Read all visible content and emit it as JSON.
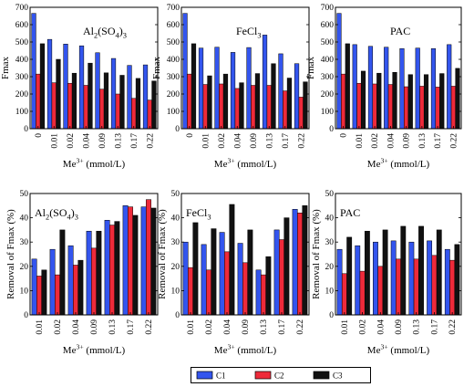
{
  "colors": {
    "C1": "#3355ee",
    "C2": "#ee2a3a",
    "C3": "#111111"
  },
  "legend": [
    "C1",
    "C2",
    "C3"
  ],
  "chart_data": [
    {
      "type": "bar",
      "panel": "top-left",
      "label": "Al2(SO4)3",
      "categories": [
        "0",
        "0.01",
        "0.02",
        "0.04",
        "0.09",
        "0.13",
        "0.17",
        "0.22"
      ],
      "xlabel": "Me3+ (mmol/L)",
      "ylabel": "Fmax",
      "ylim": [
        0,
        700
      ],
      "yticks": [
        0,
        100,
        200,
        300,
        400,
        500,
        600,
        700
      ],
      "series": [
        {
          "name": "C1",
          "values": [
            665,
            515,
            488,
            478,
            438,
            405,
            365,
            368
          ]
        },
        {
          "name": "C2",
          "values": [
            315,
            265,
            262,
            250,
            228,
            200,
            175,
            165
          ]
        },
        {
          "name": "C3",
          "values": [
            490,
            400,
            320,
            378,
            322,
            308,
            290,
            275
          ]
        }
      ]
    },
    {
      "type": "bar",
      "panel": "top-middle",
      "label": "FeCl3",
      "categories": [
        "0",
        "0.01",
        "0.02",
        "0.04",
        "0.09",
        "0.13",
        "0.17",
        "0.22"
      ],
      "xlabel": "Me3+ (mmol/L)",
      "ylabel": "Fmax",
      "ylim": [
        0,
        700
      ],
      "yticks": [
        0,
        100,
        200,
        300,
        400,
        500,
        600,
        700
      ],
      "series": [
        {
          "name": "C1",
          "values": [
            665,
            465,
            470,
            440,
            468,
            540,
            432,
            375
          ]
        },
        {
          "name": "C2",
          "values": [
            315,
            255,
            258,
            232,
            250,
            250,
            218,
            182
          ]
        },
        {
          "name": "C3",
          "values": [
            490,
            305,
            315,
            265,
            318,
            375,
            292,
            270
          ]
        }
      ]
    },
    {
      "type": "bar",
      "panel": "top-right",
      "label": "PAC",
      "categories": [
        "0",
        "0.01",
        "0.02",
        "0.04",
        "0.09",
        "0.13",
        "0.17",
        "0.22"
      ],
      "xlabel": "Me3+ (mmol/L)",
      "ylabel": "Fmax",
      "ylim": [
        0,
        700
      ],
      "yticks": [
        0,
        100,
        200,
        300,
        400,
        500,
        600,
        700
      ],
      "series": [
        {
          "name": "C1",
          "values": [
            665,
            485,
            475,
            470,
            462,
            465,
            462,
            485
          ]
        },
        {
          "name": "C2",
          "values": [
            315,
            262,
            258,
            255,
            242,
            245,
            240,
            245
          ]
        },
        {
          "name": "C3",
          "values": [
            490,
            332,
            320,
            325,
            312,
            312,
            318,
            348
          ]
        }
      ]
    },
    {
      "type": "bar",
      "panel": "bottom-left",
      "label": "Al2(SO4)3",
      "categories": [
        "0.01",
        "0.02",
        "0.04",
        "0.09",
        "0.13",
        "0.17",
        "0.22"
      ],
      "xlabel": "Me3+ (mmol/L)",
      "ylabel": "Removal of Fmax (%)",
      "ylim": [
        0,
        50
      ],
      "yticks": [
        0,
        10,
        20,
        30,
        40,
        50
      ],
      "series": [
        {
          "name": "C1",
          "values": [
            23,
            27,
            28.5,
            34.5,
            39,
            45,
            44.5
          ]
        },
        {
          "name": "C2",
          "values": [
            16,
            16.5,
            20.5,
            27.5,
            37,
            44.5,
            47.5
          ]
        },
        {
          "name": "C3",
          "values": [
            18.5,
            35,
            22.5,
            34.5,
            38.5,
            41,
            44
          ]
        }
      ]
    },
    {
      "type": "bar",
      "panel": "bottom-middle",
      "label": "FeCl3",
      "categories": [
        "0.01",
        "0.02",
        "0.04",
        "0.09",
        "0.13",
        "0.17",
        "0.22"
      ],
      "xlabel": "Me3+ (mmol/L)",
      "ylabel": "Removal of Fmax (%)",
      "ylim": [
        0,
        50
      ],
      "yticks": [
        0,
        10,
        20,
        30,
        40,
        50
      ],
      "series": [
        {
          "name": "C1",
          "values": [
            30,
            29,
            34,
            29.5,
            18.5,
            35,
            43.5
          ]
        },
        {
          "name": "C2",
          "values": [
            19.5,
            18.5,
            26,
            21.5,
            16.5,
            31,
            42
          ]
        },
        {
          "name": "C3",
          "values": [
            38,
            35.5,
            45.5,
            35,
            24,
            40,
            45
          ]
        }
      ]
    },
    {
      "type": "bar",
      "panel": "bottom-right",
      "label": "PAC",
      "categories": [
        "0.01",
        "0.02",
        "0.04",
        "0.09",
        "0.13",
        "0.17",
        "0.22"
      ],
      "xlabel": "Me3+ (mmol/L)",
      "ylabel": "Removal of Fmax (%)",
      "ylim": [
        0,
        50
      ],
      "yticks": [
        0,
        10,
        20,
        30,
        40,
        50
      ],
      "series": [
        {
          "name": "C1",
          "values": [
            27,
            28.5,
            30,
            30.5,
            30,
            30.5,
            27
          ]
        },
        {
          "name": "C2",
          "values": [
            17,
            18,
            20,
            23,
            23,
            24.5,
            22.5
          ]
        },
        {
          "name": "C3",
          "values": [
            32,
            34.5,
            35,
            36.5,
            36.5,
            35,
            29
          ]
        }
      ]
    }
  ]
}
